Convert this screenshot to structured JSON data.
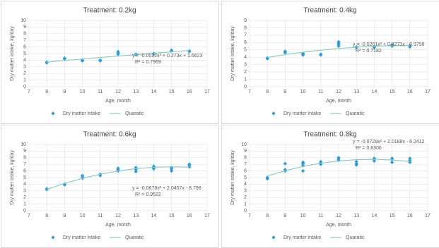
{
  "chart_data": [
    {
      "type": "scatter",
      "title": "Treatment: 0.2kg",
      "xlabel": "Age, month",
      "ylabel": "Dry matter intake, kg/day",
      "xlim": [
        7,
        17
      ],
      "xticks": [
        7,
        8,
        9,
        10,
        11,
        12,
        13,
        14,
        15,
        16,
        17
      ],
      "ylim": [
        0,
        10
      ],
      "yticks": [
        0,
        1,
        2,
        3,
        4,
        5,
        6,
        7,
        8,
        9,
        10
      ],
      "grid": true,
      "equation": "y = -0.0022x² + 0.273x + 1.6623",
      "r_squared": "R² = 0.7969",
      "series": [
        {
          "name": "Dry matter intake",
          "color": "#2e9bd6",
          "x": [
            8,
            8,
            9,
            9,
            10,
            10,
            11,
            11,
            12,
            12,
            12,
            13,
            13,
            14,
            14,
            15,
            15,
            16,
            16
          ],
          "values": [
            3.6,
            3.7,
            4.2,
            4.3,
            3.9,
            4.0,
            3.9,
            4.0,
            4.9,
            5.1,
            5.3,
            4.8,
            4.9,
            4.9,
            5.0,
            5.4,
            5.5,
            5.3,
            5.4
          ]
        },
        {
          "name": "Quaratic",
          "type": "line",
          "color": "#8ccac3",
          "x": [
            8,
            9,
            10,
            11,
            12,
            13,
            14,
            15,
            16
          ],
          "values": [
            3.71,
            3.94,
            4.17,
            4.4,
            4.62,
            4.84,
            5.05,
            5.26,
            5.47
          ]
        }
      ]
    },
    {
      "type": "scatter",
      "title": "Treatment: 0.4kg",
      "xlabel": "Age, month",
      "ylabel": "Dry matter intake, kg/day",
      "xlim": [
        7,
        17
      ],
      "xticks": [
        7,
        8,
        9,
        10,
        11,
        12,
        13,
        14,
        15,
        16,
        17
      ],
      "ylim": [
        0,
        9
      ],
      "yticks": [
        0,
        1,
        2,
        3,
        4,
        5,
        6,
        7,
        8,
        9
      ],
      "grid": true,
      "equation": "y = -0.0261x² + 0.8273x - 0.9798",
      "r_squared": "R² = 0.7182",
      "series": [
        {
          "name": "Dry matter intake",
          "color": "#2e9bd6",
          "x": [
            8,
            8,
            9,
            9,
            9,
            10,
            10,
            10,
            11,
            11,
            12,
            12,
            12,
            12,
            13,
            13,
            14,
            14,
            15,
            15,
            15,
            16,
            16,
            16
          ],
          "values": [
            3.8,
            3.9,
            4.6,
            4.7,
            4.8,
            4.3,
            4.4,
            4.5,
            4.3,
            4.4,
            5.5,
            5.7,
            5.9,
            6.1,
            5.3,
            5.4,
            5.3,
            5.4,
            5.5,
            5.6,
            5.7,
            5.4,
            5.5,
            5.6
          ]
        },
        {
          "name": "Quaratic",
          "type": "line",
          "color": "#8ccac3",
          "x": [
            8,
            9,
            10,
            11,
            12,
            13,
            14,
            15,
            16
          ],
          "values": [
            3.97,
            4.35,
            4.68,
            4.96,
            5.19,
            5.36,
            5.49,
            5.56,
            5.58
          ]
        }
      ]
    },
    {
      "type": "scatter",
      "title": "Treatment: 0.6kg",
      "xlabel": "Age, month",
      "ylabel": "Dry matter intake, kg/day",
      "xlim": [
        7,
        17
      ],
      "xticks": [
        7,
        8,
        9,
        10,
        11,
        12,
        13,
        14,
        15,
        16,
        17
      ],
      "ylim": [
        0,
        10
      ],
      "yticks": [
        0,
        1,
        2,
        3,
        4,
        5,
        6,
        7,
        8,
        9,
        10
      ],
      "grid": true,
      "equation": "y = -0.0678x² + 2.0457x - 8.798",
      "r_squared": "R² = 0.9522",
      "series": [
        {
          "name": "Dry matter intake",
          "color": "#2e9bd6",
          "x": [
            8,
            8,
            9,
            9,
            10,
            10,
            10,
            11,
            11,
            12,
            12,
            12,
            13,
            13,
            13,
            14,
            14,
            14,
            15,
            15,
            15,
            16,
            16,
            16
          ],
          "values": [
            3.2,
            3.3,
            3.9,
            4.0,
            4.9,
            5.1,
            5.3,
            5.3,
            5.5,
            6.0,
            6.2,
            6.4,
            5.9,
            6.2,
            6.5,
            6.3,
            6.5,
            6.7,
            6.0,
            6.3,
            6.5,
            6.6,
            6.8,
            7.0
          ]
        },
        {
          "name": "Quaratic",
          "type": "line",
          "color": "#8ccac3",
          "x": [
            8,
            9,
            10,
            11,
            12,
            13,
            14,
            15,
            16
          ],
          "values": [
            3.23,
            4.12,
            4.88,
            5.5,
            5.99,
            6.34,
            6.55,
            6.63,
            6.58
          ]
        }
      ]
    },
    {
      "type": "scatter",
      "title": "Treatment: 0.8kg",
      "xlabel": "Age, month",
      "ylabel": "Dry matter intake, kg/day",
      "xlim": [
        7,
        17
      ],
      "xticks": [
        7,
        8,
        9,
        10,
        11,
        12,
        13,
        14,
        15,
        16,
        17
      ],
      "ylim": [
        0,
        10
      ],
      "yticks": [
        0,
        1,
        2,
        3,
        4,
        5,
        6,
        7,
        8,
        9,
        10
      ],
      "grid": true,
      "equation": "y = -0.0728x² + 2.0188x - 6.2412",
      "r_squared": "R² = 0.8306",
      "series": [
        {
          "name": "Dry matter intake",
          "color": "#2e9bd6",
          "x": [
            8,
            8,
            9,
            9,
            9,
            10,
            10,
            10,
            10,
            11,
            11,
            11,
            12,
            12,
            12,
            13,
            13,
            13,
            14,
            14,
            14,
            15,
            15,
            15,
            16,
            16,
            16
          ],
          "values": [
            4.8,
            5.0,
            6.0,
            6.2,
            7.1,
            6.0,
            6.8,
            7.1,
            7.3,
            7.0,
            7.2,
            7.4,
            7.6,
            7.8,
            8.0,
            6.9,
            7.1,
            7.4,
            7.5,
            7.7,
            7.9,
            7.3,
            7.7,
            7.9,
            7.3,
            7.6,
            7.9
          ]
        },
        {
          "name": "Quaratic",
          "type": "line",
          "color": "#8ccac3",
          "x": [
            8,
            9,
            10,
            11,
            12,
            13,
            14,
            15,
            16
          ],
          "values": [
            5.25,
            6.03,
            6.67,
            7.16,
            7.5,
            7.7,
            7.75,
            7.66,
            7.42
          ]
        }
      ]
    }
  ]
}
